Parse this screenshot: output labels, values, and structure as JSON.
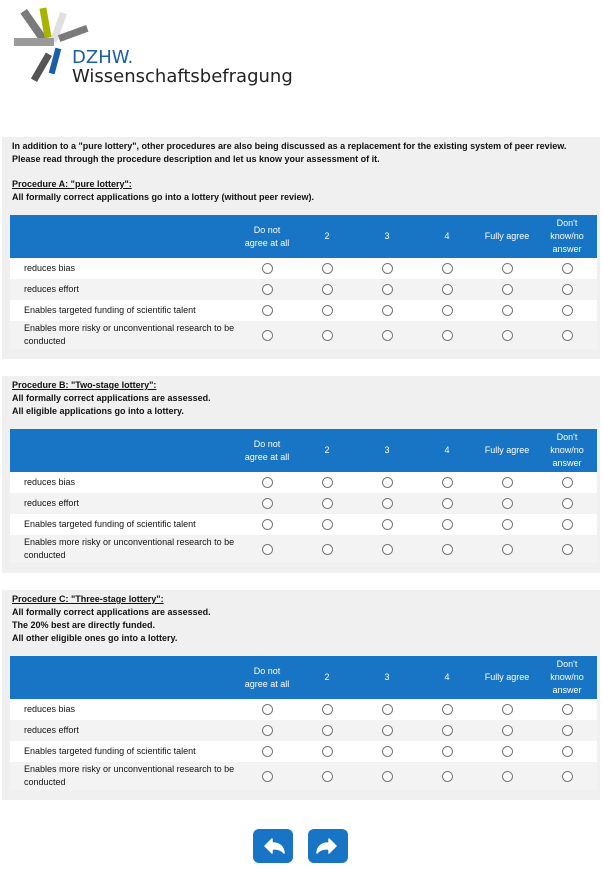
{
  "header": {
    "brand": "DZHW.",
    "subtitle": "Wissenschaftsbefragung"
  },
  "intro": "In addition to a \"pure lottery\", other procedures are also being discussed as a replacement for the existing system of peer review. Please read through the procedure description and let us know your assessment of it.",
  "procedures": [
    {
      "title": "Procedure A: \"pure lottery\":",
      "description": [
        "All formally correct applications go into a lottery (without peer review)."
      ],
      "columns": [
        "Do not agree at all",
        "2",
        "3",
        "4",
        "Fully agree",
        "Don't know/no answer"
      ],
      "rows": [
        "reduces bias",
        "reduces effort",
        "Enables targeted funding of scientific talent",
        "Enables more risky or unconventional research to be conducted"
      ]
    },
    {
      "title": "Procedure B: \"Two-stage lottery\":",
      "description": [
        "All formally correct applications are assessed.",
        "All eligible applications go into a lottery."
      ],
      "columns": [
        "Do not agree at all",
        "2",
        "3",
        "4",
        "Fully agree",
        "Don't know/no answer"
      ],
      "rows": [
        "reduces bias",
        "reduces effort",
        "Enables targeted funding of scientific talent",
        "Enables more risky or unconventional research to be conducted"
      ]
    },
    {
      "title": "Procedure C: \"Three-stage lottery\":",
      "description": [
        "All formally correct applications are assessed.",
        "The 20% best are directly funded.",
        "All other eligible ones go into a lottery."
      ],
      "columns": [
        "Do not agree at all",
        "2",
        "3",
        "4",
        "Fully agree",
        "Don't know/no answer"
      ],
      "rows": [
        "reduces bias",
        "reduces effort",
        "Enables targeted funding of scientific talent",
        "Enables more risky or unconventional research to be conducted"
      ]
    }
  ]
}
